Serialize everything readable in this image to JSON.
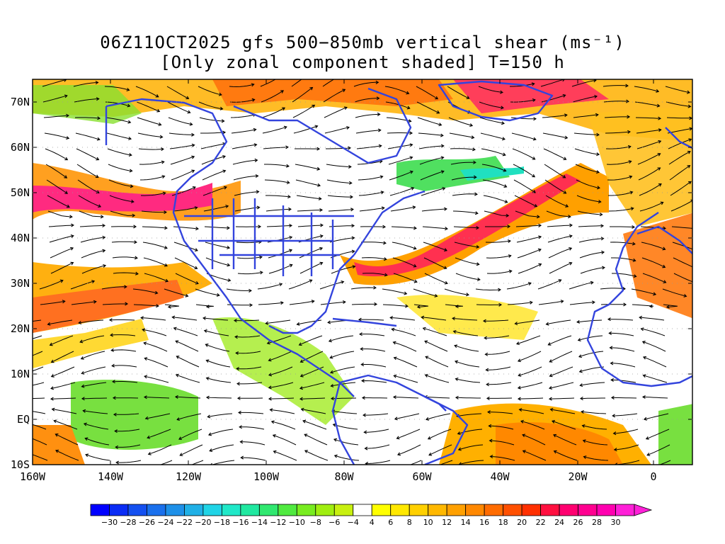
{
  "title_line1": "06Z11OCT2025 gfs 500−850mb vertical shear (ms⁻¹)",
  "title_line2": "[Only zonal component shaded] T=150 h",
  "lat_labels": [
    "70N",
    "60N",
    "50N",
    "40N",
    "30N",
    "20N",
    "10N",
    "EQ",
    "10S"
  ],
  "lon_labels": [
    "160W",
    "140W",
    "120W",
    "100W",
    "80W",
    "60W",
    "40W",
    "20W",
    "0"
  ],
  "colorbar": {
    "labels": [
      "−30",
      "−28",
      "−26",
      "−24",
      "−22",
      "−20",
      "−18",
      "−16",
      "−14",
      "−12",
      "−10",
      "−8",
      "−6",
      "−4",
      "4",
      "6",
      "8",
      "10",
      "12",
      "14",
      "16",
      "18",
      "20",
      "22",
      "24",
      "26",
      "28",
      "30"
    ],
    "colors": [
      "#0000ff",
      "#0a2cf5",
      "#1450f0",
      "#1a70ec",
      "#1e90e8",
      "#20b0e6",
      "#20d4e6",
      "#20e8c8",
      "#20e8a0",
      "#30e870",
      "#50ea40",
      "#78ec20",
      "#a0ee10",
      "#c8f010",
      "#ffffff",
      "#ffff00",
      "#ffe800",
      "#ffd000",
      "#ffb800",
      "#ffa000",
      "#ff8800",
      "#ff6c00",
      "#ff5000",
      "#ff3000",
      "#ff1040",
      "#ff0070",
      "#ff0090",
      "#ff00b0",
      "#ff20d8"
    ]
  },
  "coast_color": "#3344dd"
}
